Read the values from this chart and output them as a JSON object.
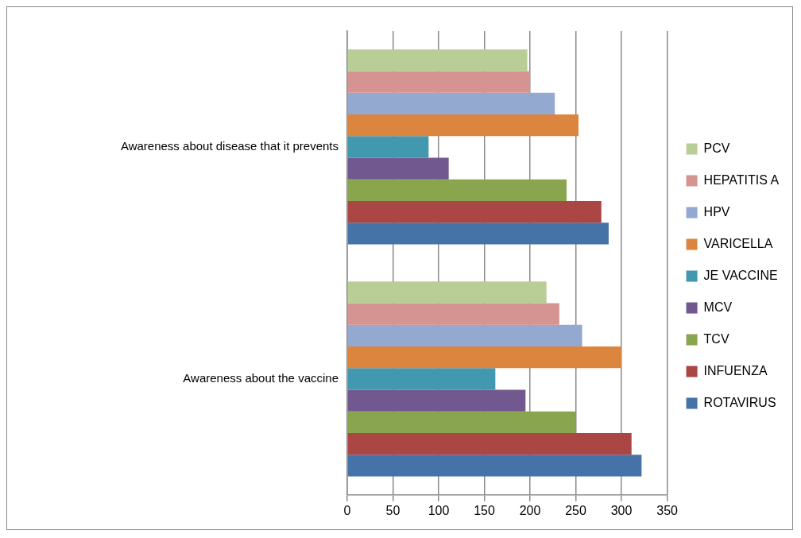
{
  "chart_data": {
    "type": "bar",
    "orientation": "horizontal",
    "categories": [
      "Awareness about disease that it prevents",
      "Awareness about the vaccine"
    ],
    "series": [
      {
        "name": "PCV",
        "color": "#b9cd96",
        "values": [
          197,
          218
        ]
      },
      {
        "name": "HEPATITIS A",
        "color": "#d59391",
        "values": [
          200,
          232
        ]
      },
      {
        "name": "HPV",
        "color": "#93a9cf",
        "values": [
          227,
          257
        ]
      },
      {
        "name": "VARICELLA",
        "color": "#dc853e",
        "values": [
          253,
          300
        ]
      },
      {
        "name": "JE VACCINE",
        "color": "#4198af",
        "values": [
          89,
          162
        ]
      },
      {
        "name": "MCV",
        "color": "#71588f",
        "values": [
          111,
          195
        ]
      },
      {
        "name": "TCV",
        "color": "#89a54e",
        "values": [
          240,
          250
        ]
      },
      {
        "name": "INFUENZA",
        "color": "#aa4643",
        "values": [
          278,
          311
        ]
      },
      {
        "name": "ROTAVIRUS",
        "color": "#4572a7",
        "values": [
          286,
          322
        ]
      }
    ],
    "xlim": [
      0,
      350
    ],
    "xticks": [
      0,
      50,
      100,
      150,
      200,
      250,
      300,
      350
    ],
    "grid": "x",
    "legend": "right"
  }
}
